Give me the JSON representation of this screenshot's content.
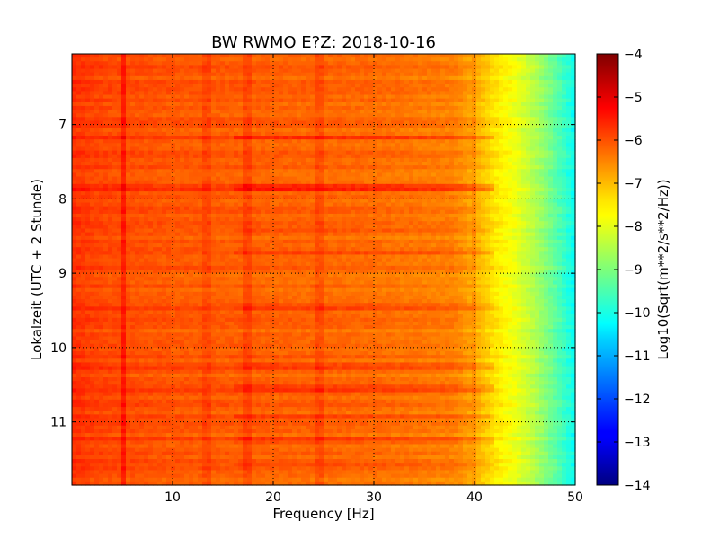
{
  "chart_data": {
    "type": "heatmap",
    "title": "BW RWMO E?Z: 2018-10-16",
    "xlabel": "Frequency [Hz]",
    "ylabel": "Lokalzeit (UTC + 2 Stunde)",
    "xlim": [
      0,
      50
    ],
    "ylim": [
      6.05,
      11.85
    ],
    "y_inverted": true,
    "x_ticks": [
      10,
      20,
      30,
      40,
      50
    ],
    "y_ticks": [
      7,
      8,
      9,
      10,
      11
    ],
    "grid": true,
    "colormap": "jet",
    "colorbar": {
      "label": "Log10(Sqrt(m**2/s**2/Hz))",
      "range": [
        -14,
        -4
      ],
      "ticks": [
        -4,
        -5,
        -6,
        -7,
        -8,
        -9,
        -10,
        -11,
        -12,
        -13,
        -14
      ]
    },
    "spectrum_profile": {
      "frequency": [
        0,
        2,
        5,
        10,
        20,
        30,
        38,
        40,
        42,
        44,
        46,
        48,
        50
      ],
      "value": [
        -5.7,
        -5.9,
        -6.0,
        -6.1,
        -6.2,
        -6.3,
        -6.5,
        -6.9,
        -7.5,
        -7.9,
        -8.5,
        -9.3,
        -10.2
      ]
    },
    "bright_bands": [
      {
        "time": 7.18,
        "intensity": 0.5
      },
      {
        "time": 7.82,
        "intensity": 0.6
      },
      {
        "time": 7.85,
        "intensity": 0.6
      },
      {
        "time": 8.42,
        "intensity": 0.35
      },
      {
        "time": 8.72,
        "intensity": 0.45
      },
      {
        "time": 9.45,
        "intensity": 0.3
      },
      {
        "time": 10.25,
        "intensity": 0.3
      },
      {
        "time": 10.55,
        "intensity": 0.4
      },
      {
        "time": 10.92,
        "intensity": 0.35
      },
      {
        "time": 11.25,
        "intensity": 0.3
      },
      {
        "time": 11.58,
        "intensity": 0.35
      }
    ],
    "vertical_lines": [
      {
        "frequency": 5.2,
        "intensity": 0.5
      },
      {
        "frequency": 13.4,
        "intensity": 0.2
      },
      {
        "frequency": 17.3,
        "intensity": 0.25
      },
      {
        "frequency": 24.6,
        "intensity": 0.25
      },
      {
        "frequency": 40.0,
        "intensity": 0.2
      }
    ]
  }
}
